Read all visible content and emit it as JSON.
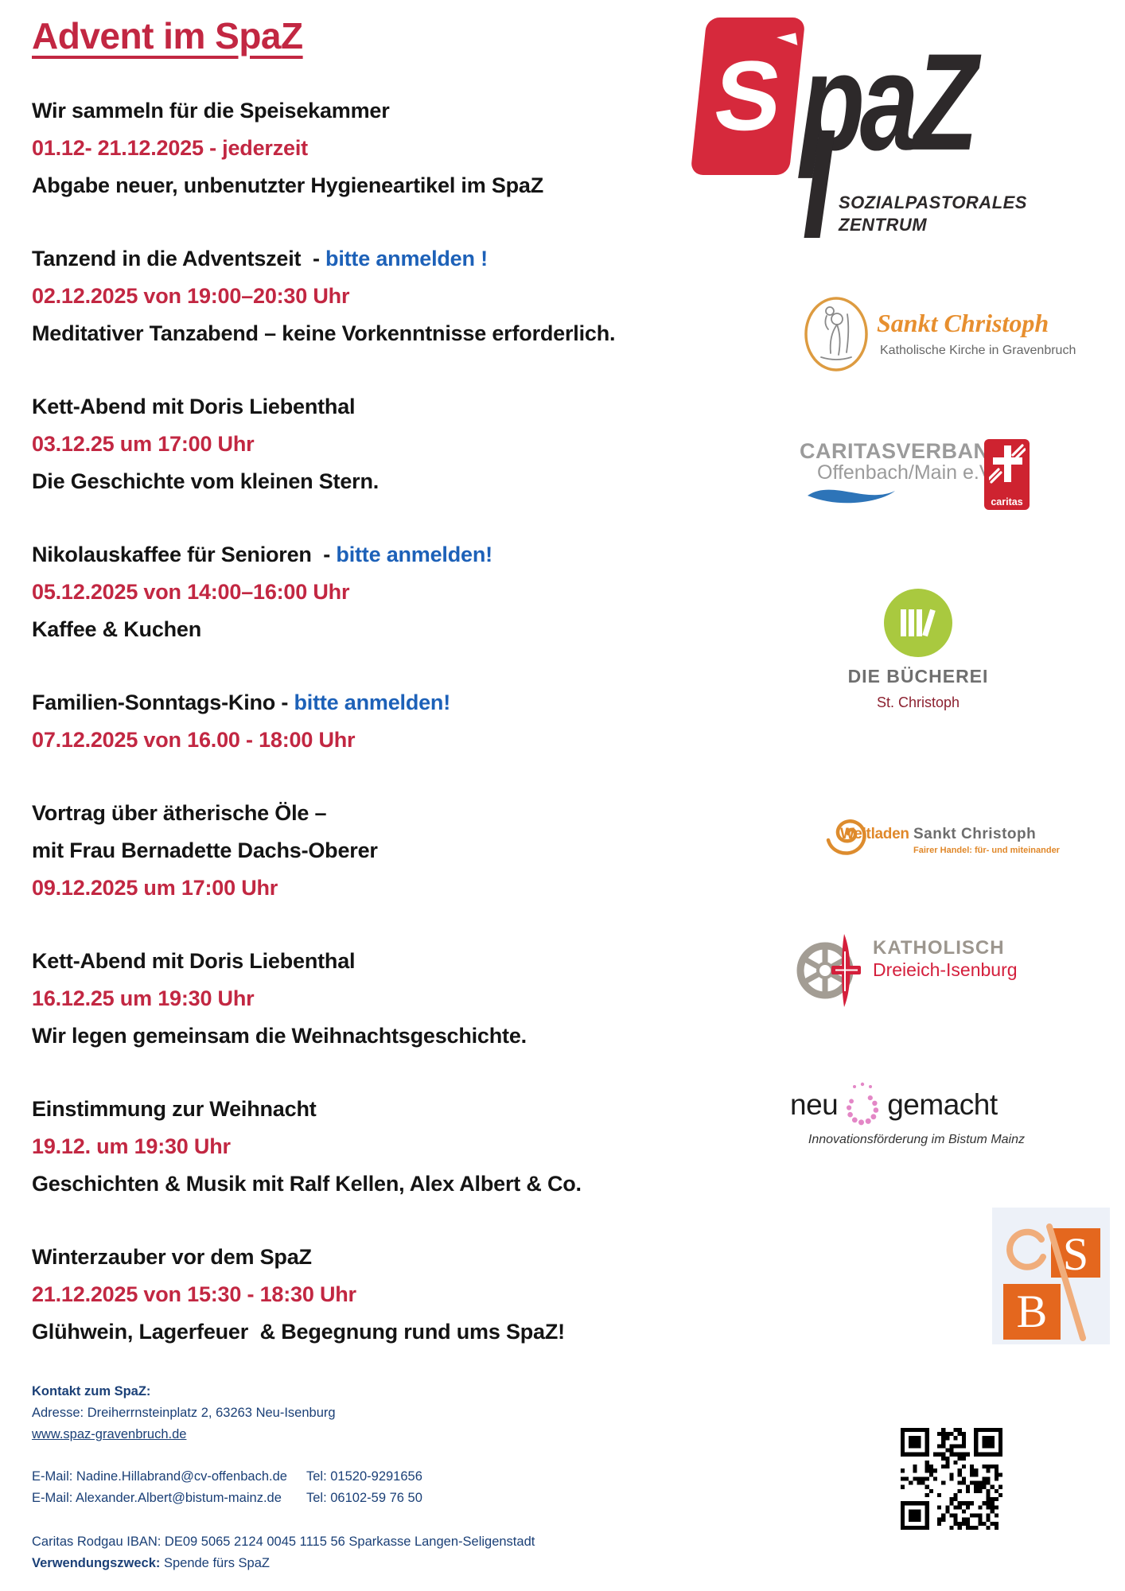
{
  "title": "Advent im SpaZ",
  "colors": {
    "accent_red": "#c22742",
    "accent_blue": "#1d61b8",
    "footer_navy": "#1b4077",
    "spaz_red": "#d6293c",
    "caritas_red": "#ce2330",
    "orange": "#e0882a",
    "green": "#a9c93f",
    "pink": "#e387c6"
  },
  "events": [
    {
      "lines": [
        [
          [
            "Wir sammeln für die Speisekammer",
            "black"
          ]
        ],
        [
          [
            "01.12- 21.12.2025 - jederzeit",
            "red"
          ]
        ],
        [
          [
            "Abgabe neuer, unbenutzter Hygieneartikel im SpaZ",
            "black"
          ]
        ]
      ]
    },
    {
      "lines": [
        [
          [
            "Tanzend in die Adventszeit  - ",
            "black"
          ],
          [
            "bitte anmelden !",
            "blue"
          ]
        ],
        [
          [
            "02.12.2025 von 19:00–20:30 Uhr",
            "red"
          ]
        ],
        [
          [
            "Meditativer Tanzabend – keine Vorkenntnisse erforderlich.",
            "black"
          ]
        ]
      ]
    },
    {
      "lines": [
        [
          [
            "Kett-Abend mit Doris Liebenthal",
            "black"
          ]
        ],
        [
          [
            "03.12.25 um 17:00 Uhr",
            "red"
          ]
        ],
        [
          [
            "Die Geschichte vom kleinen Stern.",
            "black"
          ]
        ]
      ]
    },
    {
      "lines": [
        [
          [
            "Nikolauskaffee für Senioren  - ",
            "black"
          ],
          [
            "bitte anmelden!",
            "blue"
          ]
        ],
        [
          [
            "05.12.2025 von 14:00–16:00 Uhr",
            "red"
          ]
        ],
        [
          [
            "Kaffee & Kuchen",
            "black"
          ]
        ]
      ]
    },
    {
      "lines": [
        [
          [
            "Familien-Sonntags-Kino - ",
            "black"
          ],
          [
            "bitte anmelden!",
            "blue"
          ]
        ],
        [
          [
            "07.12.2025 von 16.00 - 18:00 Uhr",
            "red"
          ]
        ]
      ]
    },
    {
      "lines": [
        [
          [
            "Vortrag über ätherische Öle –",
            "black"
          ]
        ],
        [
          [
            "mit Frau Bernadette Dachs-Oberer",
            "black"
          ]
        ],
        [
          [
            "09.12.2025 um 17:00 Uhr",
            "red"
          ]
        ]
      ]
    },
    {
      "lines": [
        [
          [
            "Kett-Abend mit Doris Liebenthal",
            "black"
          ]
        ],
        [
          [
            "16.12.25 um 19:30 Uhr",
            "red"
          ]
        ],
        [
          [
            "Wir legen gemeinsam die Weihnachtsgeschichte.",
            "black"
          ]
        ]
      ]
    },
    {
      "lines": [
        [
          [
            "Einstimmung zur Weihnacht",
            "black"
          ]
        ],
        [
          [
            "19.12. um 19:30 Uhr",
            "red"
          ]
        ],
        [
          [
            "Geschichten & Musik mit Ralf Kellen, Alex Albert & Co.",
            "black"
          ]
        ]
      ]
    },
    {
      "lines": [
        [
          [
            "Winterzauber vor dem SpaZ",
            "black"
          ]
        ],
        [
          [
            "21.12.2025 von 15:30 - 18:30 Uhr",
            "red"
          ]
        ],
        [
          [
            "Glühwein, Lagerfeuer  & Begegnung rund ums SpaZ!",
            "black"
          ]
        ]
      ]
    }
  ],
  "logos": {
    "spaz": {
      "s": "S",
      "word": "paZ",
      "sub1": "SOZIALPASTORALES",
      "sub2": "ZENTRUM"
    },
    "sankt_christoph": {
      "name": "Sankt Christoph",
      "sub": "Katholische Kirche in Gravenbruch"
    },
    "caritas": {
      "line1": "CARITASVERBAND",
      "line2": "Offenbach/Main e.V.",
      "badge": "caritas"
    },
    "buecherei": {
      "line1": "DIE BÜCHEREI",
      "line2": "St. Christoph"
    },
    "weltladen": {
      "name": "Weltladen",
      "name2": "Sankt Christoph",
      "sub": "Fairer Handel: für- und miteinander"
    },
    "katholisch": {
      "line1": "KATHOLISCH",
      "line2": "Dreieich-Isenburg"
    },
    "neugemacht": {
      "w1": "neu",
      "w2": "gemacht",
      "sub": "Innovationsförderung im Bistum Mainz"
    },
    "sb": {
      "s": "S",
      "b": "B"
    }
  },
  "footer": {
    "heading": "Kontakt zum SpaZ:",
    "address": "Adresse: Dreiherrnsteinplatz 2, 63263 Neu-Isenburg",
    "website": "www.spaz-gravenbruch.de",
    "email1": "E-Mail: Nadine.Hillabrand@cv-offenbach.de",
    "tel1": "Tel: 01520-9291656",
    "email2": "E-Mail: Alexander.Albert@bistum-mainz.de",
    "tel2": "Tel: 06102-59 76 50",
    "iban": "Caritas Rodgau IBAN: DE09 5065 2124 0045 1115 56 Sparkasse Langen-Seligenstadt",
    "purpose_label": "Verwendungszweck:",
    "purpose": " Spende fürs SpaZ"
  }
}
